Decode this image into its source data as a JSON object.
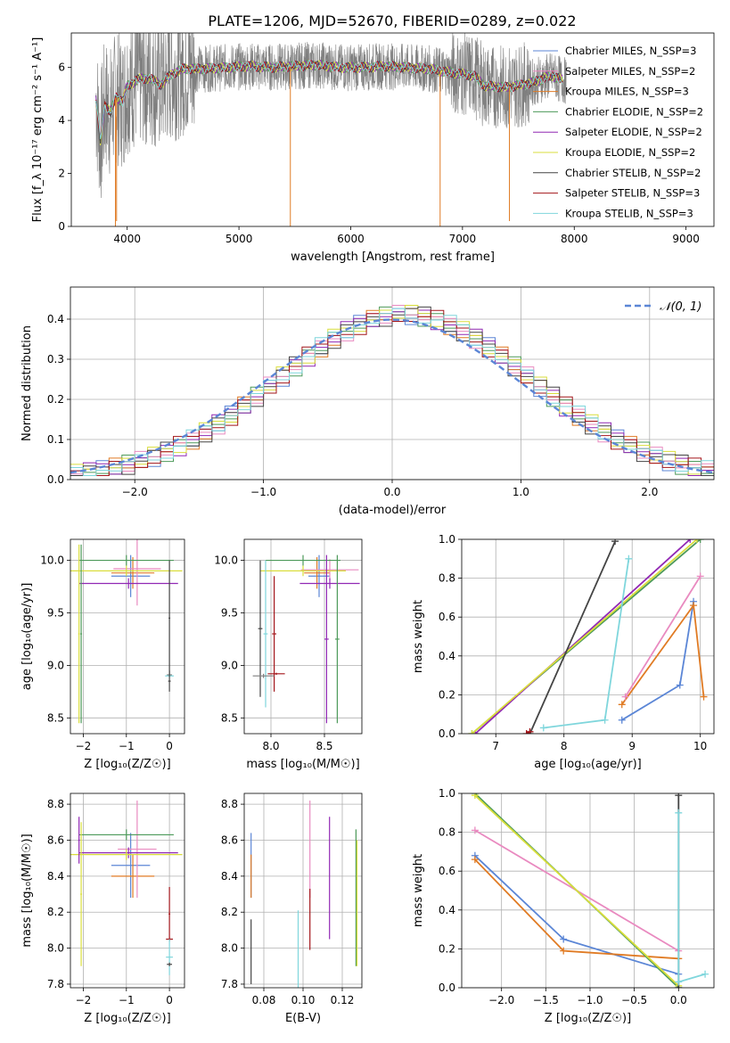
{
  "figure_title": "PLATE=1206, MJD=52670, FIBERID=0289, z=0.022",
  "colors": {
    "blue": "#5b86d6",
    "orange": "#e07b24",
    "green": "#4d9a5a",
    "purple": "#9128b4",
    "pink": "#e98ac0",
    "gray": "#7f7f7f",
    "yellow": "#d9de3c",
    "cyan": "#7fd6dc",
    "dark": "#444444",
    "red": "#a3151a"
  },
  "chart_data": [
    {
      "id": "spectrum",
      "type": "line",
      "xlabel": "wavelength [Angstrom, rest frame]",
      "ylabel": "Flux [f_λ 10⁻¹⁷ erg cm⁻² s⁻¹ A⁻¹]",
      "xlim": [
        3500,
        9250
      ],
      "ylim": [
        0,
        7.3
      ],
      "xticks": [
        4000,
        5000,
        6000,
        7000,
        8000,
        9000
      ],
      "yticks": [
        0,
        2,
        4,
        6
      ],
      "grid": false,
      "legend_position": "top-right",
      "legend": [
        {
          "label": "Chabrier MILES, N_SSP=3",
          "color": "blue"
        },
        {
          "label": "Salpeter MILES, N_SSP=2",
          "color": "pink"
        },
        {
          "label": "Kroupa MILES, N_SSP=3",
          "color": "orange"
        },
        {
          "label": "Chabrier ELODIE, N_SSP=2",
          "color": "green"
        },
        {
          "label": "Salpeter ELODIE, N_SSP=2",
          "color": "purple"
        },
        {
          "label": "Kroupa ELODIE, N_SSP=2",
          "color": "yellow"
        },
        {
          "label": "Chabrier STELIB, N_SSP=2",
          "color": "dark"
        },
        {
          "label": "Salpeter STELIB, N_SSP=3",
          "color": "red"
        },
        {
          "label": "Kroupa STELIB, N_SSP=3",
          "color": "cyan"
        }
      ],
      "continuum": [
        [
          3720,
          4.8
        ],
        [
          3760,
          3.2
        ],
        [
          3800,
          4.6
        ],
        [
          3850,
          4.3
        ],
        [
          3900,
          4.9
        ],
        [
          3960,
          4.7
        ],
        [
          4000,
          5.3
        ],
        [
          4100,
          5.55
        ],
        [
          4200,
          5.6
        ],
        [
          4300,
          5.35
        ],
        [
          4400,
          5.75
        ],
        [
          4500,
          5.95
        ],
        [
          4700,
          5.95
        ],
        [
          4900,
          6.0
        ],
        [
          5100,
          6.05
        ],
        [
          5300,
          6.0
        ],
        [
          5500,
          6.05
        ],
        [
          5700,
          6.1
        ],
        [
          5900,
          6.0
        ],
        [
          6100,
          6.0
        ],
        [
          6300,
          6.05
        ],
        [
          6500,
          6.0
        ],
        [
          6700,
          5.95
        ],
        [
          6900,
          5.8
        ],
        [
          7100,
          5.7
        ],
        [
          7200,
          5.3
        ],
        [
          7400,
          5.25
        ],
        [
          7600,
          5.4
        ],
        [
          7800,
          5.7
        ],
        [
          7900,
          5.5
        ]
      ],
      "spikes": [
        [
          5460,
          0
        ],
        [
          6800,
          0
        ],
        [
          7420,
          0.2
        ],
        [
          3895,
          0
        ],
        [
          3905,
          0.2
        ]
      ]
    },
    {
      "id": "residual_histogram",
      "type": "line",
      "xlabel": "(data-model)/error",
      "ylabel": "Normed distribution",
      "xlim": [
        -2.5,
        2.5
      ],
      "ylim": [
        0,
        0.48
      ],
      "xticks": [
        -2,
        -1,
        0,
        1,
        2
      ],
      "yticks": [
        0.0,
        0.1,
        0.2,
        0.3,
        0.4
      ],
      "grid": true,
      "legend_position": "top-right",
      "legend": [
        {
          "label": "𝒩(0, 1)",
          "color": "blue"
        }
      ],
      "bin_width": 0.1,
      "series": [
        {
          "color": "blue",
          "offsets": [
            1,
            -2,
            3,
            0,
            -1,
            2,
            -3,
            1,
            0,
            -2
          ]
        },
        {
          "color": "orange",
          "offsets": [
            -2,
            1,
            0,
            3,
            -1,
            -2,
            2,
            0,
            1,
            -3
          ]
        },
        {
          "color": "green",
          "offsets": [
            2,
            0,
            -1,
            -2,
            3,
            1,
            0,
            -3,
            2,
            -1
          ]
        },
        {
          "color": "purple",
          "offsets": [
            -1,
            3,
            2,
            -2,
            0,
            1,
            -1,
            2,
            -3,
            0
          ]
        },
        {
          "color": "pink",
          "offsets": [
            0,
            -3,
            1,
            2,
            -2,
            3,
            0,
            -1,
            1,
            2
          ]
        },
        {
          "color": "yellow",
          "offsets": [
            3,
            1,
            -2,
            0,
            2,
            -1,
            3,
            1,
            -2,
            1
          ]
        },
        {
          "color": "dark",
          "offsets": [
            -3,
            2,
            1,
            1,
            -3,
            0,
            2,
            3,
            0,
            -2
          ]
        },
        {
          "color": "red",
          "offsets": [
            1,
            -1,
            -3,
            2,
            1,
            -2,
            -2,
            0,
            3,
            1
          ]
        },
        {
          "color": "cyan",
          "offsets": [
            2,
            -2,
            0,
            -1,
            1,
            2,
            -1,
            -2,
            0,
            3
          ]
        }
      ]
    },
    {
      "id": "age_vs_Z",
      "type": "scatter",
      "xlabel": "Z [log₁₀(Z/Z☉)]",
      "ylabel": "age  [log₁₀(age/yr)]",
      "xlim": [
        -2.3,
        0.35
      ],
      "ylim": [
        8.35,
        10.2
      ],
      "xticks": [
        -2,
        -1,
        0
      ],
      "yticks": [
        8.5,
        9.0,
        9.5,
        10.0
      ],
      "grid": true,
      "points": [
        {
          "x": -0.9,
          "y": 9.85,
          "xerr": 0.45,
          "yerr": 0.2,
          "color": "blue"
        },
        {
          "x": -0.85,
          "y": 9.88,
          "xerr": 0.5,
          "yerr": 0.15,
          "color": "orange"
        },
        {
          "x": -0.75,
          "y": 9.92,
          "xerr": 0.55,
          "yerr": 0.35,
          "color": "pink"
        },
        {
          "x": -0.95,
          "y": 9.78,
          "xerr": 1.15,
          "yerr": 0.05,
          "color": "purple"
        },
        {
          "x": -1.0,
          "y": 9.9,
          "xerr": 1.3,
          "yerr": 0.05,
          "color": "yellow"
        },
        {
          "x": -1.0,
          "y": 10.0,
          "xerr": 1.1,
          "yerr": 0.05,
          "color": "green"
        },
        {
          "x": -2.05,
          "y": 9.3,
          "xerr": 0.02,
          "yerr": 0.85,
          "color": "green"
        },
        {
          "x": -2.1,
          "y": 9.3,
          "xerr": 0.02,
          "yerr": 0.85,
          "color": "yellow"
        },
        {
          "x": 0.0,
          "y": 9.45,
          "xerr": 0.02,
          "yerr": 0.55,
          "color": "dark"
        },
        {
          "x": 0.0,
          "y": 8.91,
          "xerr": 0.06,
          "yerr": 0.01,
          "color": "gray"
        },
        {
          "x": 0.0,
          "y": 8.9,
          "xerr": 0.1,
          "yerr": 0.02,
          "color": "cyan"
        },
        {
          "x": 0.0,
          "y": 8.85,
          "xerr": 0.03,
          "yerr": 0.1,
          "color": "dark"
        }
      ]
    },
    {
      "id": "age_vs_mass",
      "type": "scatter",
      "xlabel": "mass [log₁₀(M/M☉)]",
      "ylabel": "",
      "xlim": [
        7.75,
        8.85
      ],
      "ylim": [
        8.35,
        10.2
      ],
      "xticks": [
        8.0,
        8.5
      ],
      "yticks": [
        8.5,
        9.0,
        9.5,
        10.0
      ],
      "grid": true,
      "points": [
        {
          "x": 8.45,
          "y": 9.85,
          "xerr": 0.1,
          "yerr": 0.2,
          "color": "blue"
        },
        {
          "x": 8.43,
          "y": 9.88,
          "xerr": 0.12,
          "yerr": 0.15,
          "color": "orange"
        },
        {
          "x": 8.55,
          "y": 9.91,
          "xerr": 0.27,
          "yerr": 0.1,
          "color": "pink"
        },
        {
          "x": 8.55,
          "y": 9.78,
          "xerr": 0.28,
          "yerr": 0.05,
          "color": "purple"
        },
        {
          "x": 8.3,
          "y": 9.9,
          "xerr": 0.4,
          "yerr": 0.05,
          "color": "yellow"
        },
        {
          "x": 8.3,
          "y": 10.0,
          "xerr": 0.35,
          "yerr": 0.05,
          "color": "green"
        },
        {
          "x": 8.52,
          "y": 9.25,
          "xerr": 0.02,
          "yerr": 0.8,
          "color": "purple"
        },
        {
          "x": 8.62,
          "y": 9.25,
          "xerr": 0.02,
          "yerr": 0.8,
          "color": "green"
        },
        {
          "x": 7.95,
          "y": 9.3,
          "xerr": 0.02,
          "yerr": 0.7,
          "color": "cyan"
        },
        {
          "x": 7.9,
          "y": 9.35,
          "xerr": 0.02,
          "yerr": 0.65,
          "color": "dark"
        },
        {
          "x": 8.03,
          "y": 9.3,
          "xerr": 0.02,
          "yerr": 0.55,
          "color": "red"
        },
        {
          "x": 8.05,
          "y": 8.92,
          "xerr": 0.08,
          "yerr": 0.01,
          "color": "red"
        },
        {
          "x": 7.93,
          "y": 8.9,
          "xerr": 0.1,
          "yerr": 0.02,
          "color": "gray"
        }
      ]
    },
    {
      "id": "mass_weight_vs_age",
      "type": "line",
      "xlabel": "age  [log₁₀(age/yr)]",
      "ylabel": "mass weight",
      "xlim": [
        6.5,
        10.2
      ],
      "ylim": [
        0,
        1
      ],
      "xticks": [
        7,
        8,
        9,
        10
      ],
      "yticks": [
        0.0,
        0.2,
        0.4,
        0.6,
        0.8,
        1.0
      ],
      "grid": true,
      "series": [
        {
          "color": "blue",
          "x": [
            8.85,
            9.7,
            9.9
          ],
          "y": [
            0.07,
            0.25,
            0.68
          ]
        },
        {
          "color": "orange",
          "x": [
            8.85,
            9.9,
            10.05
          ],
          "y": [
            0.15,
            0.66,
            0.19
          ]
        },
        {
          "color": "pink",
          "x": [
            8.9,
            10.0
          ],
          "y": [
            0.19,
            0.81
          ]
        },
        {
          "color": "green",
          "x": [
            6.65,
            10.0
          ],
          "y": [
            0.0,
            1.0
          ]
        },
        {
          "color": "purple",
          "x": [
            6.7,
            9.85
          ],
          "y": [
            0.0,
            1.0
          ]
        },
        {
          "color": "yellow",
          "x": [
            6.65,
            9.95
          ],
          "y": [
            0.0,
            1.0
          ]
        },
        {
          "color": "dark",
          "x": [
            7.5,
            8.75
          ],
          "y": [
            0.0,
            0.99
          ]
        },
        {
          "color": "red",
          "x": [
            7.45,
            7.5
          ],
          "y": [
            0.0,
            0.01
          ]
        },
        {
          "color": "cyan",
          "x": [
            7.7,
            8.6,
            8.95
          ],
          "y": [
            0.03,
            0.07,
            0.9
          ]
        }
      ]
    },
    {
      "id": "mass_vs_Z",
      "type": "scatter",
      "xlabel": "Z [log₁₀(Z/Z☉)]",
      "ylabel": "mass [log₁₀(M/M☉)]",
      "xlim": [
        -2.3,
        0.35
      ],
      "ylim": [
        7.78,
        8.86
      ],
      "xticks": [
        -2,
        -1,
        0
      ],
      "yticks": [
        7.8,
        8.0,
        8.2,
        8.4,
        8.6,
        8.8
      ],
      "grid": true,
      "points": [
        {
          "x": -0.9,
          "y": 8.46,
          "xerr": 0.45,
          "yerr": 0.18,
          "color": "blue"
        },
        {
          "x": -0.85,
          "y": 8.4,
          "xerr": 0.5,
          "yerr": 0.12,
          "color": "orange"
        },
        {
          "x": -0.75,
          "y": 8.55,
          "xerr": 0.45,
          "yerr": 0.27,
          "color": "pink"
        },
        {
          "x": -0.95,
          "y": 8.53,
          "xerr": 1.15,
          "yerr": 0.03,
          "color": "purple"
        },
        {
          "x": -1.0,
          "y": 8.52,
          "xerr": 1.3,
          "yerr": 0.03,
          "color": "yellow"
        },
        {
          "x": -1.0,
          "y": 8.63,
          "xerr": 1.1,
          "yerr": 0.03,
          "color": "green"
        },
        {
          "x": -2.1,
          "y": 8.6,
          "xerr": 0.02,
          "yerr": 0.13,
          "color": "purple"
        },
        {
          "x": -2.05,
          "y": 8.3,
          "xerr": 0.02,
          "yerr": 0.4,
          "color": "yellow"
        },
        {
          "x": 0.0,
          "y": 8.19,
          "xerr": 0.02,
          "yerr": 0.15,
          "color": "red"
        },
        {
          "x": 0.0,
          "y": 8.05,
          "xerr": 0.08,
          "yerr": 0.01,
          "color": "red"
        },
        {
          "x": 0.0,
          "y": 7.95,
          "xerr": 0.08,
          "yerr": 0.1,
          "color": "cyan"
        },
        {
          "x": 0.0,
          "y": 7.91,
          "xerr": 0.06,
          "yerr": 0.01,
          "color": "dark"
        }
      ]
    },
    {
      "id": "mass_vs_ebv",
      "type": "scatter",
      "xlabel": "E(B-V)",
      "ylabel": "",
      "xlim": [
        0.07,
        0.13
      ],
      "ylim": [
        7.78,
        8.86
      ],
      "xticks": [
        0.08,
        0.1,
        0.12
      ],
      "yticks": [
        7.8,
        8.0,
        8.2,
        8.4,
        8.6,
        8.8
      ],
      "grid": true,
      "points": [
        {
          "x": 0.0735,
          "y": 8.46,
          "yerr": 0.18,
          "color": "blue"
        },
        {
          "x": 0.0735,
          "y": 8.4,
          "yerr": 0.12,
          "color": "orange"
        },
        {
          "x": 0.0735,
          "y": 7.98,
          "yerr": 0.18,
          "color": "dark"
        },
        {
          "x": 0.0975,
          "y": 7.96,
          "yerr": 0.25,
          "color": "cyan"
        },
        {
          "x": 0.1035,
          "y": 8.55,
          "yerr": 0.27,
          "color": "pink"
        },
        {
          "x": 0.1035,
          "y": 8.16,
          "yerr": 0.17,
          "color": "red"
        },
        {
          "x": 0.1135,
          "y": 8.39,
          "yerr": 0.34,
          "color": "purple"
        },
        {
          "x": 0.127,
          "y": 8.28,
          "yerr": 0.38,
          "color": "green"
        },
        {
          "x": 0.1275,
          "y": 8.25,
          "yerr": 0.35,
          "color": "yellow"
        }
      ]
    },
    {
      "id": "mass_weight_vs_Z",
      "type": "line",
      "xlabel": "Z [log₁₀(Z/Z☉)]",
      "ylabel": "mass weight",
      "xlim": [
        -2.45,
        0.4
      ],
      "ylim": [
        0,
        1
      ],
      "xticks": [
        -2.0,
        -1.5,
        -1.0,
        -0.5,
        0.0
      ],
      "yticks": [
        0.0,
        0.2,
        0.4,
        0.6,
        0.8,
        1.0
      ],
      "grid": true,
      "series": [
        {
          "color": "blue",
          "x": [
            -2.3,
            -1.3,
            0.0
          ],
          "y": [
            0.68,
            0.25,
            0.07
          ]
        },
        {
          "color": "orange",
          "x": [
            -2.3,
            -1.3,
            0.0
          ],
          "y": [
            0.66,
            0.19,
            0.15
          ]
        },
        {
          "color": "pink",
          "x": [
            -2.3,
            0.0
          ],
          "y": [
            0.81,
            0.19
          ]
        },
        {
          "color": "green",
          "x": [
            -2.3,
            0.0
          ],
          "y": [
            1.0,
            0.0
          ]
        },
        {
          "color": "yellow",
          "x": [
            -2.3,
            0.0
          ],
          "y": [
            0.99,
            0.01
          ]
        },
        {
          "color": "dark",
          "x": [
            0.0,
            0.0
          ],
          "y": [
            0.0,
            0.99
          ]
        },
        {
          "color": "cyan",
          "x": [
            0.0,
            0.0,
            0.3
          ],
          "y": [
            0.9,
            0.03,
            0.07
          ]
        }
      ]
    }
  ]
}
